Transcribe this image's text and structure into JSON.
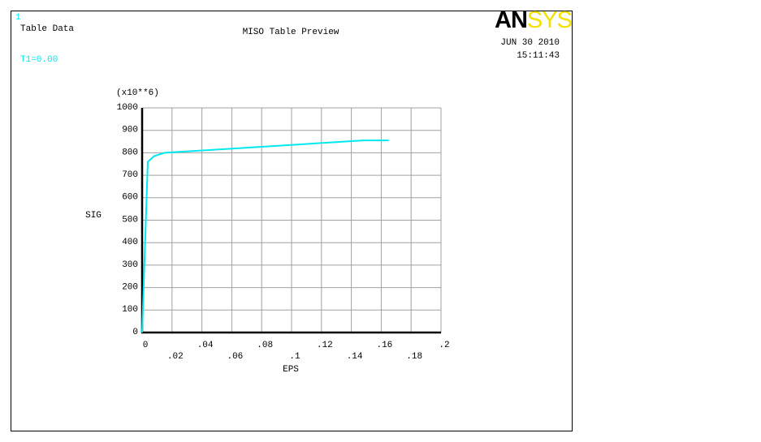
{
  "window_number": "1",
  "subtitle_left": "Table Data",
  "temperature_label": "T1=0.00",
  "logo_parts": [
    "AN",
    "SYS"
  ],
  "date": "JUN 30 2010",
  "time": "15:11:43",
  "chart_data": {
    "type": "line",
    "title": "MISO Table Preview",
    "xlabel": "EPS",
    "ylabel": "SIG",
    "y_multiplier": "(x10**6)",
    "series": [
      {
        "name": "T1",
        "color": "#00e8f0",
        "x": [
          0,
          0.0038,
          0.008,
          0.015,
          0.148,
          0.165
        ],
        "values": [
          0,
          760,
          785,
          800,
          855,
          855
        ]
      }
    ],
    "xlim": [
      0,
      0.2
    ],
    "ylim": [
      0,
      1000
    ],
    "xticks": [
      0,
      {
        "value": 0.02,
        "label": ".02"
      },
      {
        "value": 0.04,
        "label": ".04"
      },
      {
        "value": 0.06,
        "label": ".06"
      },
      {
        "value": 0.08,
        "label": ".08"
      },
      {
        "value": 0.1,
        "label": ".1"
      },
      {
        "value": 0.12,
        "label": ".12"
      },
      {
        "value": 0.14,
        "label": ".14"
      },
      {
        "value": 0.16,
        "label": ".16"
      },
      {
        "value": 0.18,
        "label": ".18"
      },
      {
        "value": 0.2,
        "label": ".2"
      }
    ],
    "yticks": [
      0,
      100,
      200,
      300,
      400,
      500,
      600,
      700,
      800,
      900,
      1000
    ],
    "grid": true
  }
}
